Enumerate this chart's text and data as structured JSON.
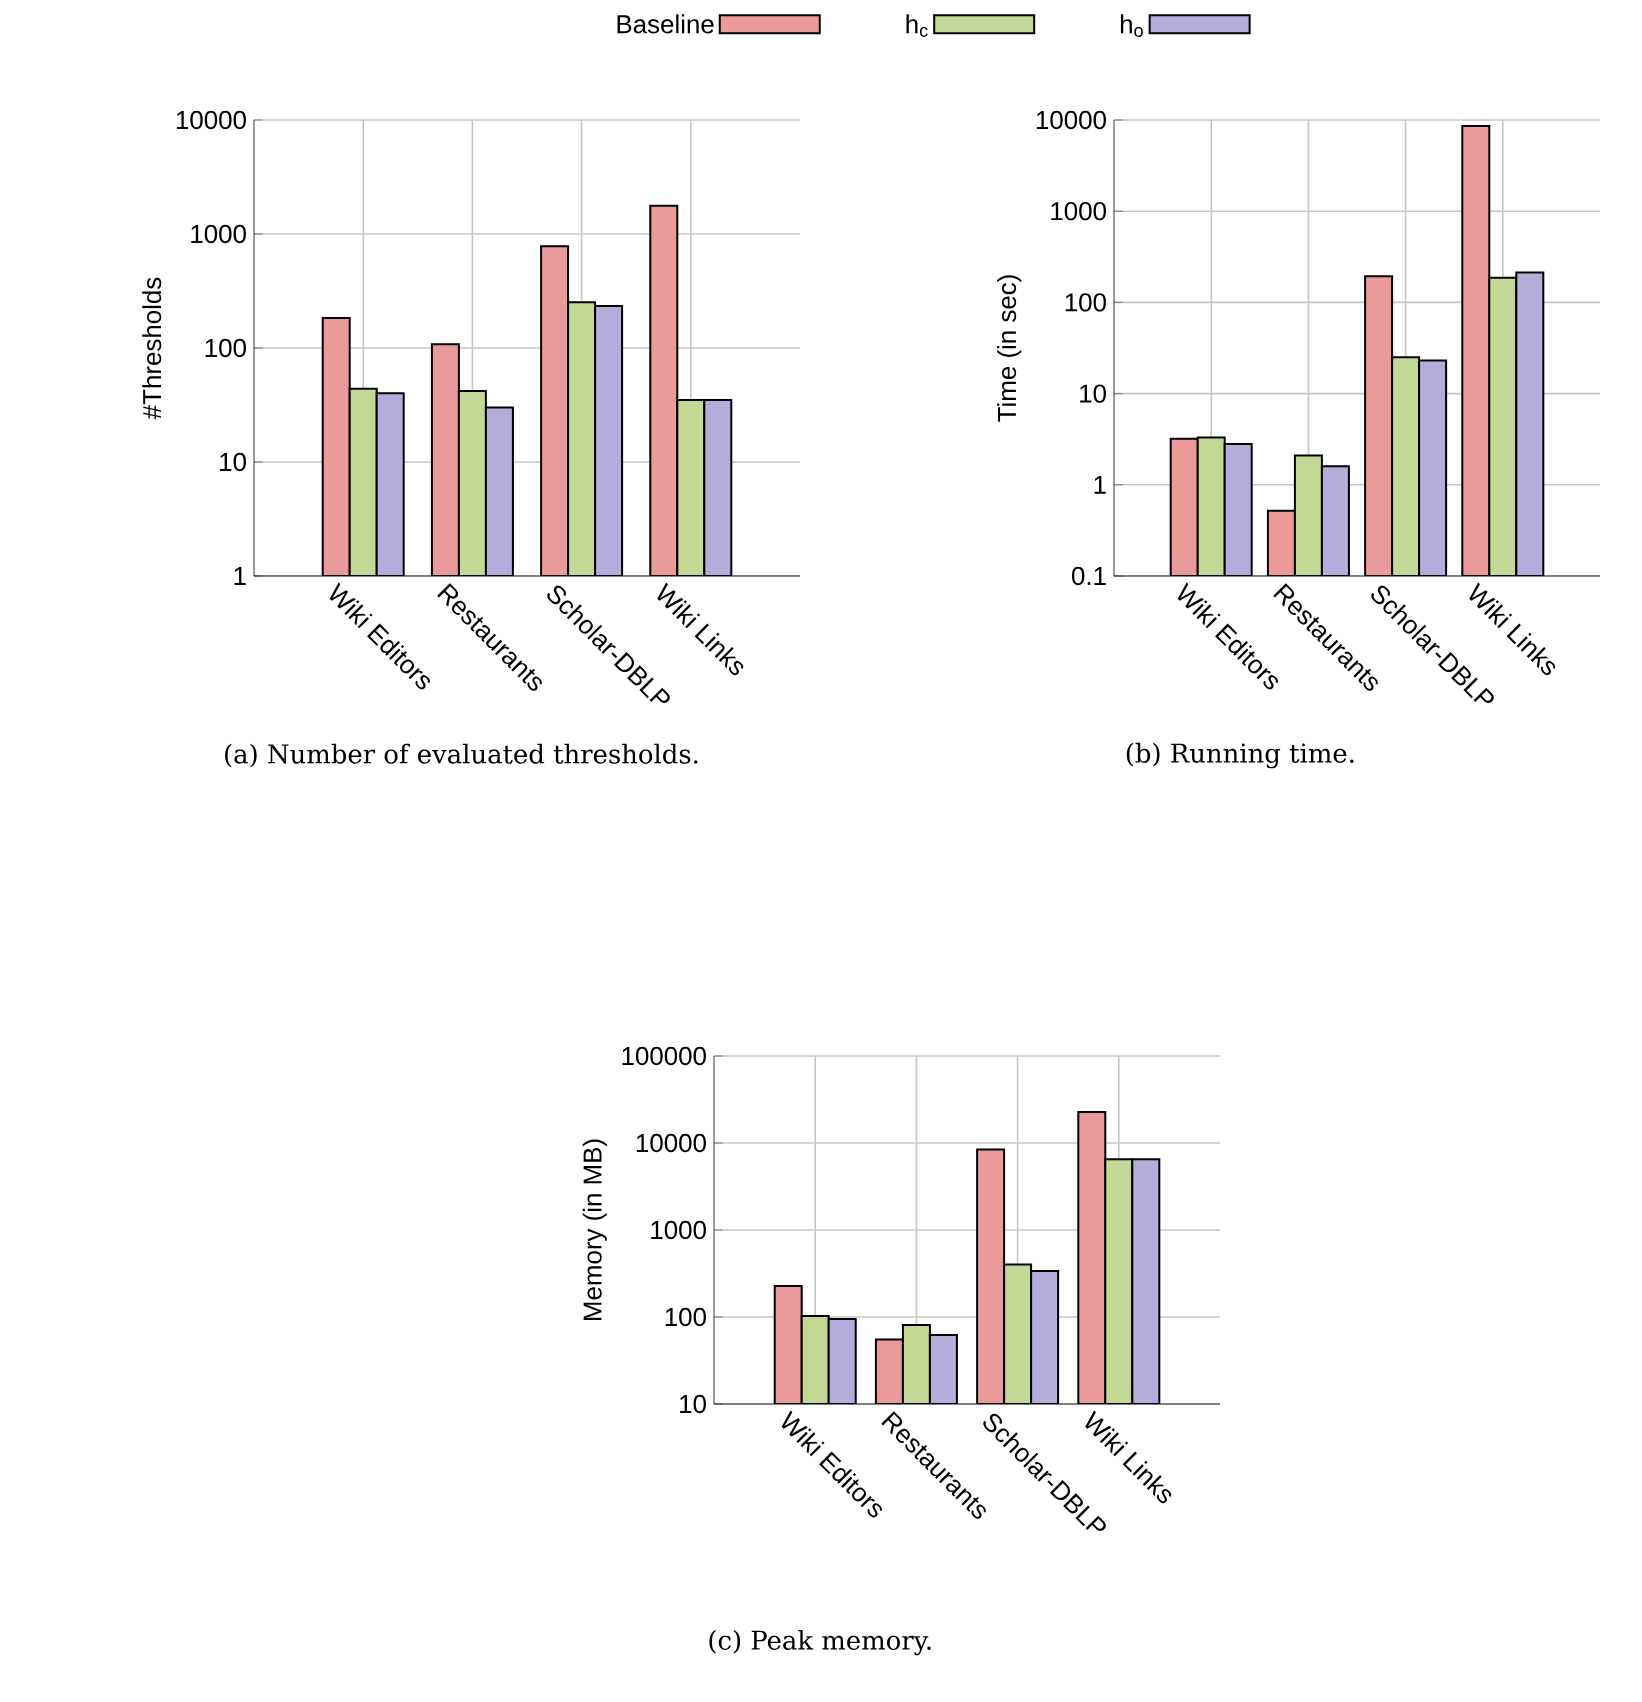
{
  "chart_data": [
    {
      "type": "bar",
      "title": "(a) Number of evaluated thresholds.",
      "ylabel": "#Thresholds",
      "categories": [
        "Wiki Editors",
        "Restaurants",
        "Scholar-DBLP",
        "Wiki Links"
      ],
      "log": true,
      "grid": true,
      "legend": "top",
      "ylim": [
        1,
        10000
      ],
      "yticks": [
        1,
        10,
        100,
        1000,
        10000
      ],
      "series": [
        {
          "name": "Baseline",
          "color": "#eb9a9a",
          "values": [
            183,
            108,
            780,
            1770
          ]
        },
        {
          "name": "h$_{c}$",
          "color": "#c4d896",
          "values": [
            44,
            42,
            252,
            35
          ]
        },
        {
          "name": "h$_{o}$",
          "color": "#b4acda",
          "values": [
            40,
            30,
            233,
            35
          ]
        }
      ]
    },
    {
      "type": "bar",
      "title": "(b) Running time.",
      "ylabel": "Time (in sec)",
      "categories": [
        "Wiki Editors",
        "Restaurants",
        "Scholar-DBLP",
        "Wiki Links"
      ],
      "log": true,
      "grid": true,
      "ylim": [
        0.1,
        10000
      ],
      "yticks": [
        0.1,
        1,
        10,
        100,
        1000,
        10000
      ],
      "series": [
        {
          "color": "#eb9a9a",
          "values": [
            3.2,
            0.52,
            193,
            8600
          ]
        },
        {
          "color": "#c4d896",
          "values": [
            3.3,
            2.1,
            25,
            186
          ]
        },
        {
          "color": "#b4acda",
          "values": [
            2.8,
            1.6,
            23,
            213
          ]
        }
      ]
    },
    {
      "type": "bar",
      "title": "(c) Peak memory.",
      "ylabel": "Memory (in MB)",
      "categories": [
        "Wiki Editors",
        "Restaurants",
        "Scholar-DBLP",
        "Wiki Links"
      ],
      "log": true,
      "grid": true,
      "ylim": [
        10,
        100000
      ],
      "yticks": [
        10,
        100,
        1000,
        10000,
        100000
      ],
      "series": [
        {
          "color": "#eb9a9a",
          "values": [
            227,
            55,
            8400,
            22700
          ]
        },
        {
          "color": "#c4d896",
          "values": [
            103,
            81,
            400,
            6500
          ]
        },
        {
          "color": "#b4acda",
          "values": [
            95,
            62,
            337,
            6500
          ]
        }
      ]
    }
  ]
}
